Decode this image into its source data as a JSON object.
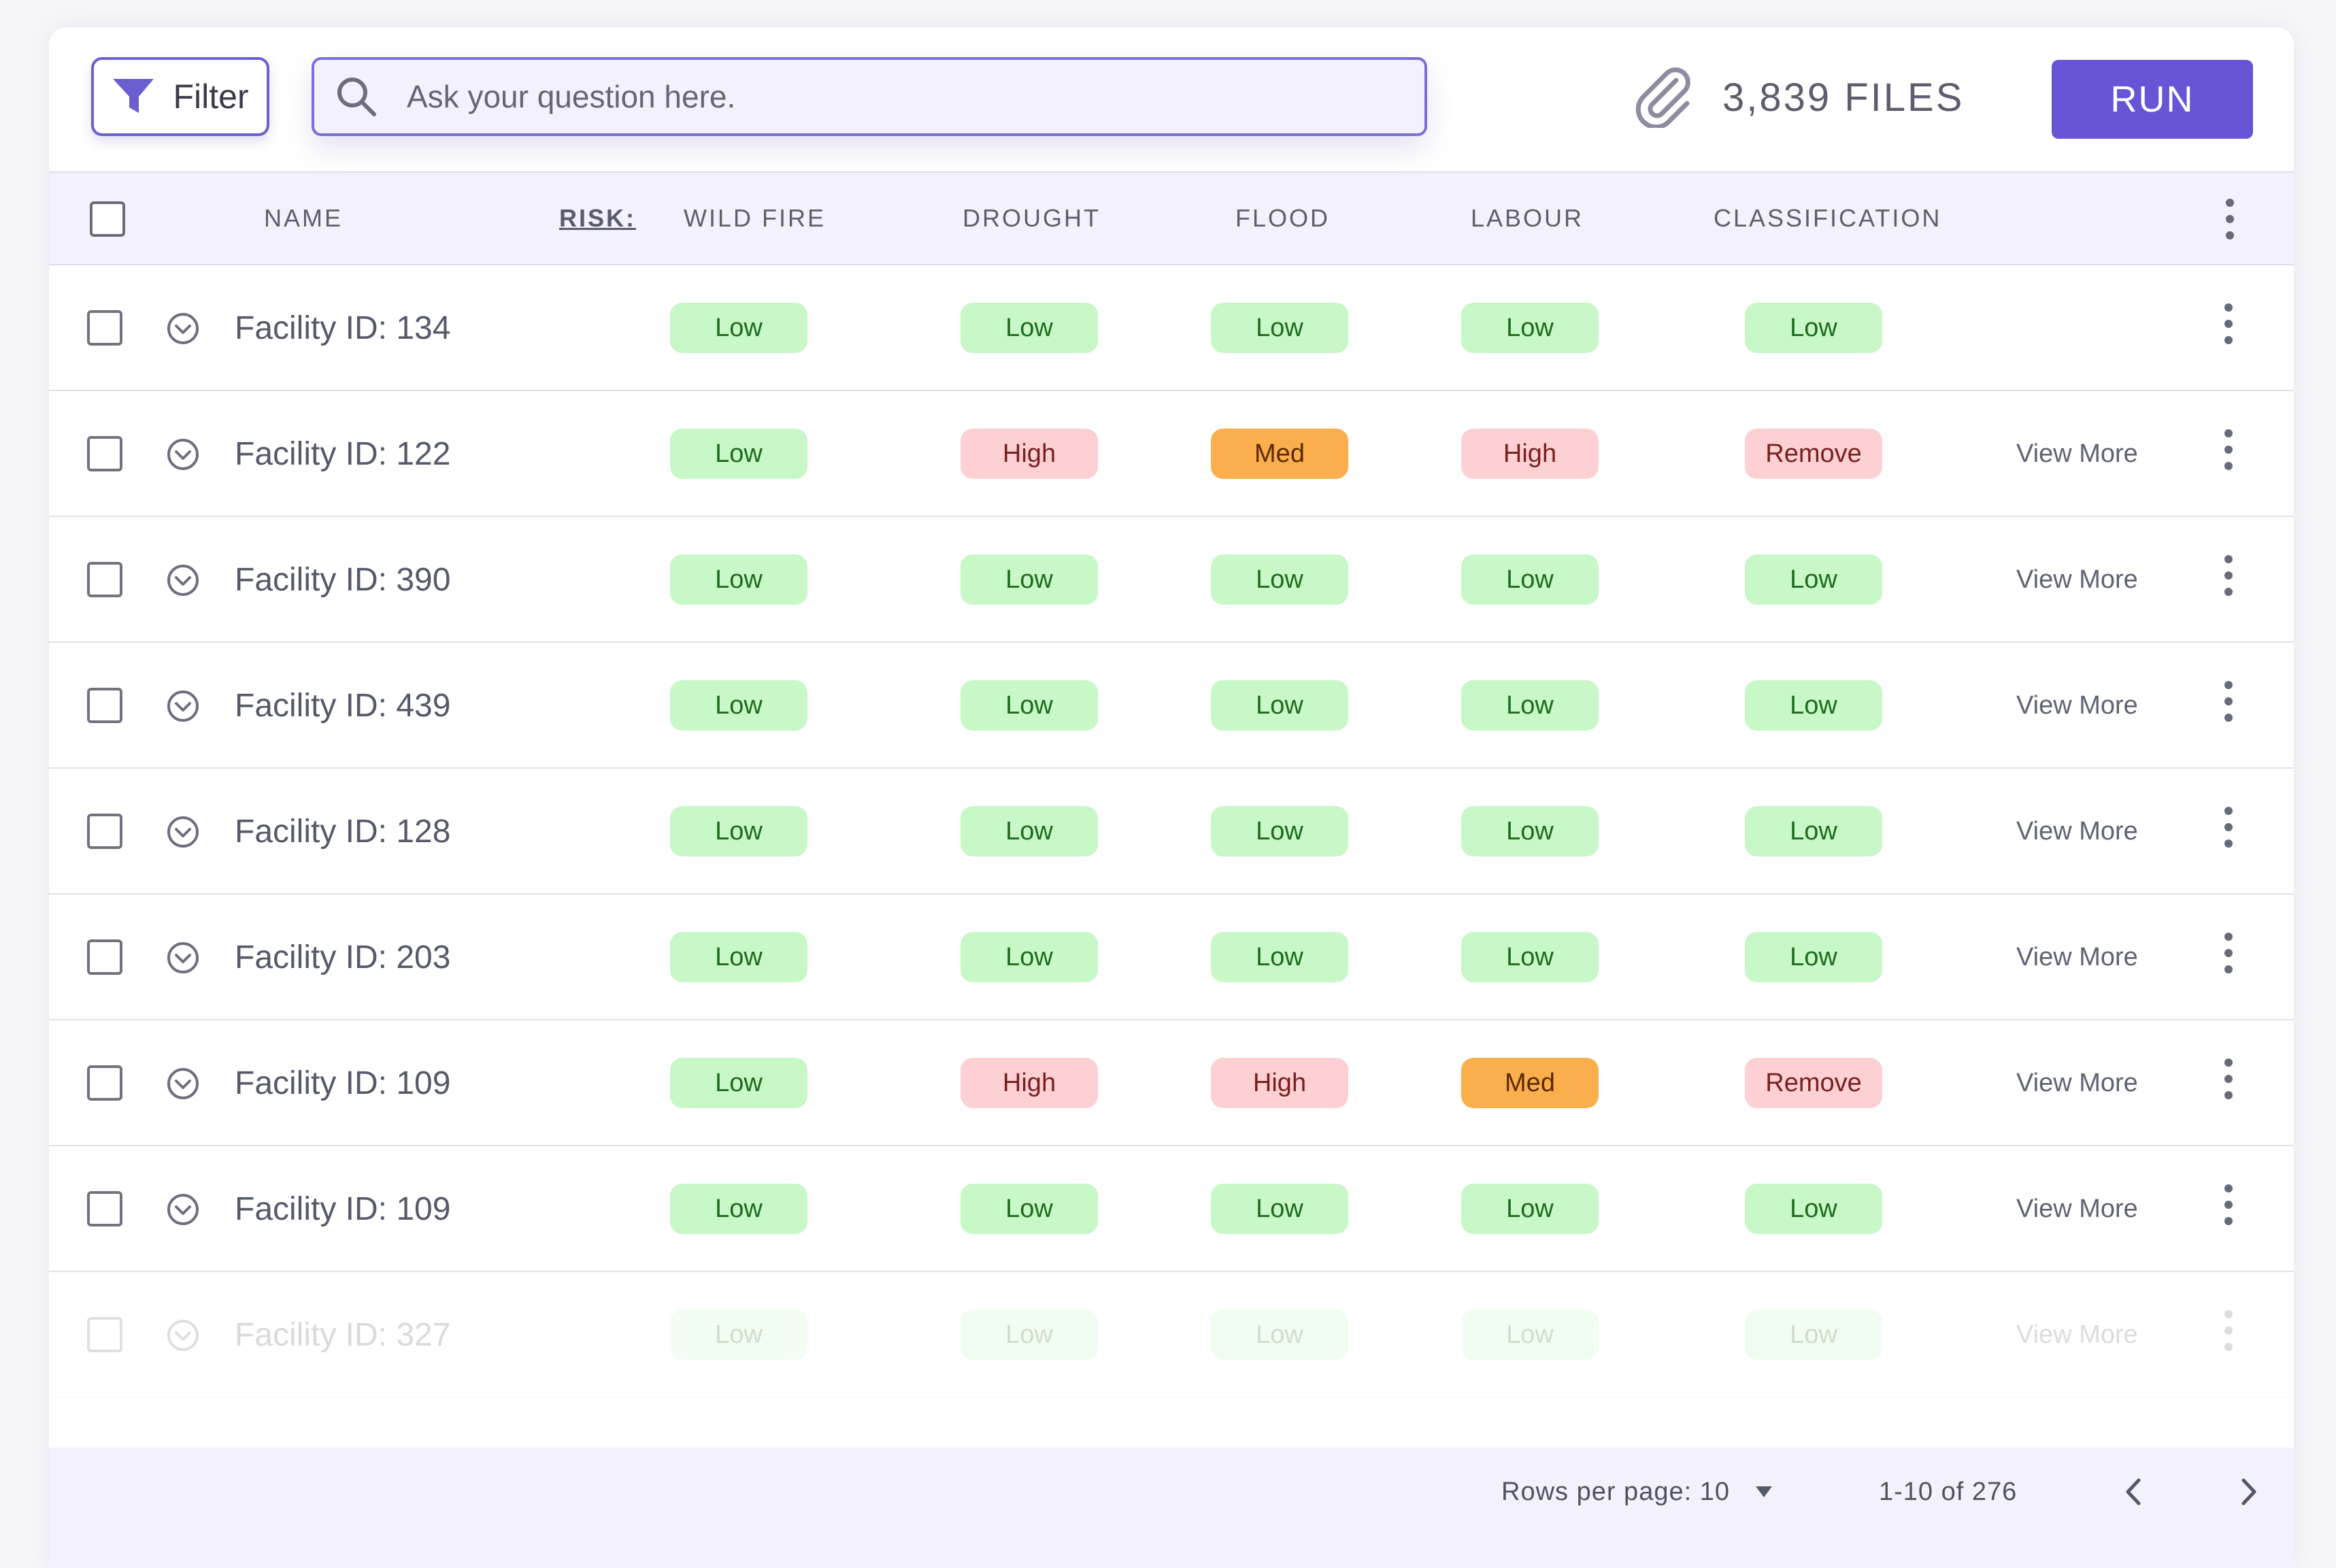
{
  "toolbar": {
    "filter_label": "Filter",
    "search_placeholder": "Ask your question here.",
    "files_count": "3,839 FILES",
    "run_label": "RUN"
  },
  "table": {
    "headers": {
      "name": "NAME",
      "risk": "RISK:",
      "wildfire": "WILD FIRE",
      "drought": "DROUGHT",
      "flood": "FLOOD",
      "labour": "LABOUR",
      "classification": "CLASSIFICATION"
    },
    "view_more_label": "View More",
    "rows": [
      {
        "name": "Facility ID: 134",
        "wildfire": "Low",
        "drought": "Low",
        "flood": "Low",
        "labour": "Low",
        "classification": "Low",
        "view_more": false
      },
      {
        "name": "Facility ID: 122",
        "wildfire": "Low",
        "drought": "High",
        "flood": "Med",
        "labour": "High",
        "classification": "Remove",
        "view_more": true
      },
      {
        "name": "Facility ID: 390",
        "wildfire": "Low",
        "drought": "Low",
        "flood": "Low",
        "labour": "Low",
        "classification": "Low",
        "view_more": true
      },
      {
        "name": "Facility ID: 439",
        "wildfire": "Low",
        "drought": "Low",
        "flood": "Low",
        "labour": "Low",
        "classification": "Low",
        "view_more": true
      },
      {
        "name": "Facility ID: 128",
        "wildfire": "Low",
        "drought": "Low",
        "flood": "Low",
        "labour": "Low",
        "classification": "Low",
        "view_more": true
      },
      {
        "name": "Facility ID: 203",
        "wildfire": "Low",
        "drought": "Low",
        "flood": "Low",
        "labour": "Low",
        "classification": "Low",
        "view_more": true
      },
      {
        "name": "Facility ID: 109",
        "wildfire": "Low",
        "drought": "High",
        "flood": "High",
        "labour": "Med",
        "classification": "Remove",
        "view_more": true
      },
      {
        "name": "Facility ID: 109",
        "wildfire": "Low",
        "drought": "Low",
        "flood": "Low",
        "labour": "Low",
        "classification": "Low",
        "view_more": true
      },
      {
        "name": "Facility ID: 327",
        "wildfire": "Low",
        "drought": "Low",
        "flood": "Low",
        "labour": "Low",
        "classification": "Low",
        "view_more": true,
        "faded": true
      }
    ]
  },
  "footer": {
    "rows_per_page": "Rows per page: 10",
    "range": "1-10 of 276"
  },
  "colors": {
    "accent": "#6656d6",
    "low_bg": "#c8f7c8",
    "high_bg": "#fdd0d3",
    "med_bg": "#fbae4c"
  }
}
